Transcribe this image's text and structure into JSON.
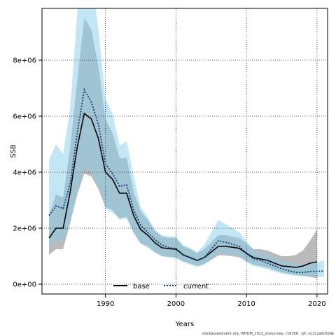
{
  "chart_data": {
    "type": "line",
    "xlabel": "Years",
    "ylabel": "SSB",
    "xlim": [
      1981,
      2021.5
    ],
    "ylim": [
      -350000,
      9850000
    ],
    "x_ticks": [
      1990,
      2000,
      2010,
      2020
    ],
    "y_ticks": [
      0,
      2000000,
      4000000,
      6000000,
      8000000
    ],
    "x_tick_labels": [
      "1990",
      "2000",
      "2010",
      "2020"
    ],
    "y_tick_labels": [
      "0e+00",
      "2e+06",
      "4e+06",
      "6e+06",
      "8e+06"
    ],
    "grid": true,
    "legend_position": "bottom-center",
    "x": [
      1982,
      1983,
      1984,
      1985,
      1986,
      1987,
      1988,
      1989,
      1990,
      1991,
      1992,
      1993,
      1994,
      1995,
      1996,
      1997,
      1998,
      1999,
      2000,
      2001,
      2002,
      2003,
      2004,
      2005,
      2006,
      2007,
      2008,
      2009,
      2010,
      2011,
      2012,
      2013,
      2014,
      2015,
      2016,
      2017,
      2018,
      2019,
      2020,
      2021
    ],
    "series": [
      {
        "name": "base",
        "color": "#000000",
        "line_style": "solid",
        "band_color": "#8c8c8c",
        "values": [
          1650000,
          2000000,
          2000000,
          3300000,
          4900000,
          6100000,
          5900000,
          5200000,
          4000000,
          3750000,
          3250000,
          3250000,
          2450000,
          1950000,
          1750000,
          1480000,
          1300000,
          1270000,
          1250000,
          1050000,
          950000,
          850000,
          950000,
          1150000,
          1350000,
          1350000,
          1320000,
          1280000,
          1100000,
          950000,
          900000,
          850000,
          750000,
          650000,
          630000,
          600000,
          650000,
          750000,
          800000,
          null
        ],
        "lower": [
          1050000,
          1250000,
          1250000,
          2200000,
          3200000,
          3950000,
          3850000,
          3400000,
          2750000,
          2650000,
          2350000,
          2400000,
          1850000,
          1450000,
          1350000,
          1150000,
          1000000,
          980000,
          960000,
          820000,
          740000,
          650000,
          720000,
          870000,
          1030000,
          1030000,
          1000000,
          960000,
          820000,
          700000,
          650000,
          590000,
          500000,
          420000,
          380000,
          330000,
          300000,
          260000,
          220000,
          null
        ],
        "upper": [
          2450000,
          3200000,
          3100000,
          4900000,
          7300000,
          9500000,
          9100000,
          7800000,
          5900000,
          5400000,
          4500000,
          4500000,
          3300000,
          2600000,
          2300000,
          1900000,
          1700000,
          1650000,
          1650000,
          1350000,
          1250000,
          1100000,
          1250000,
          1500000,
          1750000,
          1750000,
          1700000,
          1650000,
          1450000,
          1250000,
          1250000,
          1200000,
          1100000,
          1000000,
          1000000,
          1050000,
          1200000,
          1550000,
          1950000,
          null
        ]
      },
      {
        "name": "current",
        "color": "#0b3f7a",
        "line_style": "dotted",
        "band_color": "#87ceeb",
        "values": [
          2450000,
          2800000,
          2700000,
          3600000,
          5400000,
          6950000,
          6500000,
          5700000,
          4300000,
          3950000,
          3500000,
          3550000,
          2650000,
          2100000,
          1850000,
          1600000,
          1400000,
          1300000,
          1280000,
          1050000,
          950000,
          850000,
          950000,
          1250000,
          1550000,
          1500000,
          1430000,
          1350000,
          1100000,
          900000,
          850000,
          750000,
          650000,
          550000,
          480000,
          420000,
          420000,
          450000,
          460000,
          470000
        ],
        "lower": [
          1350000,
          1600000,
          1550000,
          2200000,
          3250000,
          4200000,
          3950000,
          3500000,
          2700000,
          2550000,
          2300000,
          2350000,
          1800000,
          1450000,
          1300000,
          1120000,
          1000000,
          950000,
          920000,
          780000,
          700000,
          620000,
          700000,
          900000,
          1100000,
          1080000,
          1030000,
          980000,
          780000,
          640000,
          600000,
          530000,
          450000,
          380000,
          330000,
          290000,
          280000,
          280000,
          270000,
          260000
        ],
        "upper": [
          4450000,
          5000000,
          4650000,
          6300000,
          9700000,
          11500000,
          11000000,
          9100000,
          6600000,
          6100000,
          4950000,
          5100000,
          3850000,
          2750000,
          2400000,
          1950000,
          1750000,
          1700000,
          1700000,
          1400000,
          1300000,
          1150000,
          1400000,
          1850000,
          2300000,
          2150000,
          2000000,
          1850000,
          1550000,
          1200000,
          1150000,
          1050000,
          950000,
          850000,
          780000,
          700000,
          700000,
          750000,
          780000,
          850000
        ]
      }
    ],
    "footnote": "stockassessment.org,  WHOM_2022_onesurvey,  r16306 ,  git:  ec2c2a0c6dde"
  }
}
